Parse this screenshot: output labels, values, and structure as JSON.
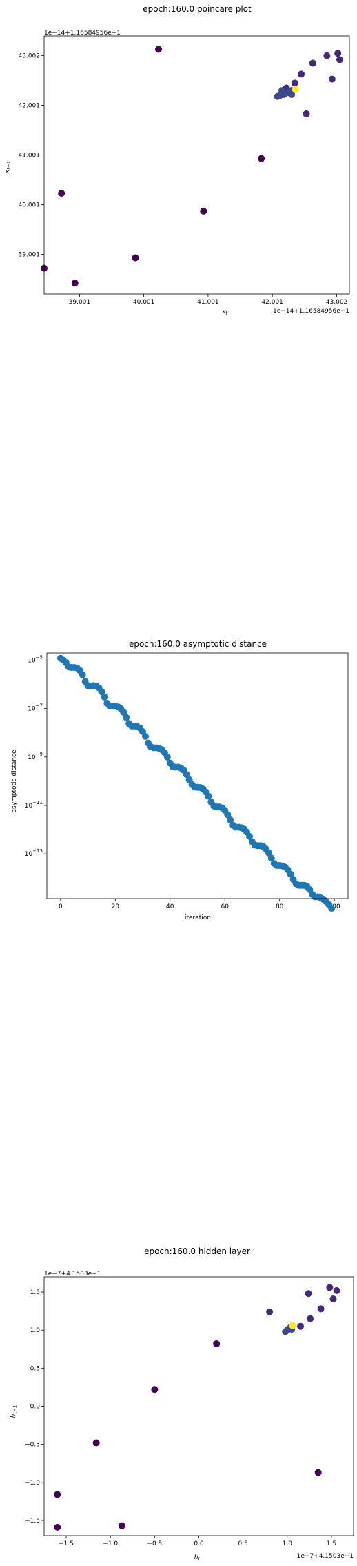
{
  "chart_data": [
    {
      "type": "scatter",
      "title": "epoch:160.0 poincare plot",
      "xlabel": "x_t",
      "ylabel": "x_{t-1}",
      "x_offset_label": "1e−14+1.16584956e−1",
      "y_offset_label": "1e−14+1.16584956e−1",
      "xlim": [
        38.45,
        43.2
      ],
      "ylim": [
        38.2,
        43.4
      ],
      "xticks": [
        39.001,
        40.001,
        41.001,
        42.001,
        43.002
      ],
      "xtick_labels": [
        "39.001",
        "40.001",
        "41.001",
        "42.001",
        "43.002"
      ],
      "yticks": [
        39.001,
        40.001,
        41.001,
        42.001,
        43.002
      ],
      "ytick_labels": [
        "39.001",
        "40.001",
        "41.001",
        "42.001",
        "43.002"
      ],
      "grid": false,
      "colormap": [
        "#440154",
        "#482878",
        "#3e4989",
        "#fde725"
      ],
      "points": [
        {
          "x": 40.23,
          "y": 43.13,
          "c": 0
        },
        {
          "x": 38.72,
          "y": 40.23,
          "c": 0
        },
        {
          "x": 38.45,
          "y": 38.72,
          "c": 0
        },
        {
          "x": 38.93,
          "y": 38.42,
          "c": 0
        },
        {
          "x": 39.87,
          "y": 38.93,
          "c": 0
        },
        {
          "x": 40.93,
          "y": 39.87,
          "c": 0
        },
        {
          "x": 41.83,
          "y": 40.93,
          "c": 0
        },
        {
          "x": 42.53,
          "y": 41.83,
          "c": 1
        },
        {
          "x": 42.93,
          "y": 42.53,
          "c": 1
        },
        {
          "x": 42.85,
          "y": 43.0,
          "c": 1
        },
        {
          "x": 43.02,
          "y": 43.05,
          "c": 1
        },
        {
          "x": 43.05,
          "y": 42.92,
          "c": 1
        },
        {
          "x": 42.63,
          "y": 42.85,
          "c": 1
        },
        {
          "x": 42.45,
          "y": 42.63,
          "c": 1
        },
        {
          "x": 42.35,
          "y": 42.45,
          "c": 1
        },
        {
          "x": 42.22,
          "y": 42.35,
          "c": 1
        },
        {
          "x": 42.3,
          "y": 42.22,
          "c": 2
        },
        {
          "x": 42.15,
          "y": 42.3,
          "c": 2
        },
        {
          "x": 42.08,
          "y": 42.18,
          "c": 2
        },
        {
          "x": 42.12,
          "y": 42.2,
          "c": 2
        },
        {
          "x": 42.18,
          "y": 42.22,
          "c": 2
        },
        {
          "x": 42.25,
          "y": 42.26,
          "c": 2
        },
        {
          "x": 42.3,
          "y": 42.3,
          "c": 2
        },
        {
          "x": 42.36,
          "y": 42.32,
          "c": 3
        }
      ]
    },
    {
      "type": "scatter",
      "title": "epoch:160.0 asymptotic distance",
      "xlabel": "iteration",
      "ylabel": "asymptotic distance",
      "xlim": [
        -5,
        105
      ],
      "ylim_log10": [
        -14.85,
        -4.7
      ],
      "xticks": [
        0,
        20,
        40,
        60,
        80,
        100
      ],
      "xtick_labels": [
        "0",
        "20",
        "40",
        "60",
        "80",
        "100"
      ],
      "yticks_log10": [
        -5,
        -7,
        -9,
        -11,
        -13
      ],
      "ytick_labels": [
        "10^-5",
        "10^-7",
        "10^-9",
        "10^-11",
        "10^-13"
      ],
      "grid": false,
      "marker_color": "#1f77b4",
      "x": [
        0,
        1,
        2,
        3,
        4,
        5,
        6,
        7,
        8,
        9,
        10,
        11,
        12,
        13,
        14,
        15,
        16,
        17,
        18,
        19,
        20,
        21,
        22,
        23,
        24,
        25,
        26,
        27,
        28,
        29,
        30,
        31,
        32,
        33,
        34,
        35,
        36,
        37,
        38,
        39,
        40,
        41,
        42,
        43,
        44,
        45,
        46,
        47,
        48,
        49,
        50,
        51,
        52,
        53,
        54,
        55,
        56,
        57,
        58,
        59,
        60,
        61,
        62,
        63,
        64,
        65,
        66,
        67,
        68,
        69,
        70,
        71,
        72,
        73,
        74,
        75,
        76,
        77,
        78,
        79,
        80,
        81,
        82,
        83,
        84,
        85,
        86,
        87,
        88,
        89,
        90,
        91,
        92,
        93,
        94,
        95,
        96,
        97,
        98,
        99
      ],
      "log10_y": [
        -4.92,
        -5.0,
        -5.1,
        -5.28,
        -5.3,
        -5.3,
        -5.32,
        -5.42,
        -5.6,
        -5.88,
        -6.05,
        -6.06,
        -6.05,
        -6.06,
        -6.14,
        -6.3,
        -6.52,
        -6.78,
        -6.9,
        -6.9,
        -6.9,
        -6.93,
        -7.0,
        -7.15,
        -7.37,
        -7.62,
        -7.72,
        -7.72,
        -7.74,
        -7.8,
        -7.95,
        -8.15,
        -8.42,
        -8.58,
        -8.62,
        -8.62,
        -8.64,
        -8.7,
        -8.82,
        -9.0,
        -9.25,
        -9.4,
        -9.42,
        -9.42,
        -9.46,
        -9.55,
        -9.72,
        -9.94,
        -10.14,
        -10.24,
        -10.25,
        -10.26,
        -10.32,
        -10.44,
        -10.62,
        -10.86,
        -11.02,
        -11.06,
        -11.06,
        -11.1,
        -11.2,
        -11.38,
        -11.6,
        -11.82,
        -11.9,
        -11.9,
        -11.92,
        -11.98,
        -12.1,
        -12.28,
        -12.5,
        -12.64,
        -12.66,
        -12.66,
        -12.7,
        -12.8,
        -12.96,
        -13.18,
        -13.4,
        -13.48,
        -13.48,
        -13.5,
        -13.55,
        -13.66,
        -13.84,
        -14.06,
        -14.24,
        -14.3,
        -14.3,
        -14.3,
        -14.35,
        -14.48,
        -14.68,
        -14.78,
        -14.78,
        -14.82,
        -14.88,
        -14.97,
        -15.1,
        -15.25
      ]
    },
    {
      "type": "scatter",
      "title": "epoch:160.0 hidden layer",
      "xlabel": "h_t",
      "ylabel": "h_{t-1}",
      "x_offset_label": "1e−7+4.1503e−1",
      "y_offset_label": "1e−7+4.1503e−1",
      "xlim": [
        -1.75,
        1.75
      ],
      "ylim": [
        -1.7,
        1.7
      ],
      "xticks": [
        -1.5,
        -1.0,
        -0.5,
        0.0,
        0.5,
        1.0,
        1.5
      ],
      "xtick_labels": [
        "−1.5",
        "−1.0",
        "−0.5",
        "0.0",
        "0.5",
        "1.0",
        "1.5"
      ],
      "yticks": [
        -1.5,
        -1.0,
        -0.5,
        0.0,
        0.5,
        1.0,
        1.5
      ],
      "ytick_labels": [
        "−1.5",
        "−1.0",
        "−0.5",
        "0.0",
        "0.5",
        "1.0",
        "1.5"
      ],
      "grid": false,
      "colormap": [
        "#440154",
        "#482878",
        "#3e4989",
        "#fde725"
      ],
      "points": [
        {
          "x": 1.35,
          "y": -0.87,
          "c": 0
        },
        {
          "x": -1.6,
          "y": -1.59,
          "c": 0
        },
        {
          "x": -1.6,
          "y": -1.16,
          "c": 0
        },
        {
          "x": -0.87,
          "y": -1.57,
          "c": 0
        },
        {
          "x": -1.16,
          "y": -0.48,
          "c": 0
        },
        {
          "x": -0.5,
          "y": 0.22,
          "c": 0
        },
        {
          "x": 0.2,
          "y": 0.82,
          "c": 0
        },
        {
          "x": 0.8,
          "y": 1.24,
          "c": 1
        },
        {
          "x": 1.24,
          "y": 1.48,
          "c": 1
        },
        {
          "x": 1.48,
          "y": 1.56,
          "c": 1
        },
        {
          "x": 1.56,
          "y": 1.52,
          "c": 1
        },
        {
          "x": 1.52,
          "y": 1.41,
          "c": 1
        },
        {
          "x": 1.38,
          "y": 1.28,
          "c": 1
        },
        {
          "x": 1.26,
          "y": 1.15,
          "c": 1
        },
        {
          "x": 1.15,
          "y": 1.05,
          "c": 1
        },
        {
          "x": 1.05,
          "y": 1.01,
          "c": 2
        },
        {
          "x": 0.98,
          "y": 0.98,
          "c": 2
        },
        {
          "x": 1.0,
          "y": 1.0,
          "c": 2
        },
        {
          "x": 1.02,
          "y": 1.02,
          "c": 2
        },
        {
          "x": 1.04,
          "y": 1.04,
          "c": 2
        },
        {
          "x": 1.06,
          "y": 1.06,
          "c": 3
        }
      ]
    }
  ]
}
